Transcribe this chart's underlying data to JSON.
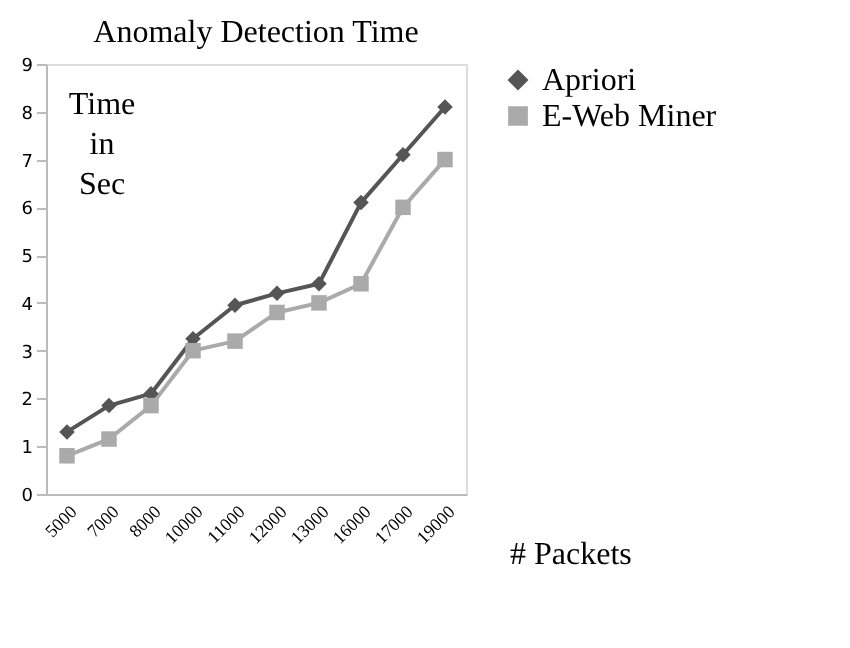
{
  "chart_data": {
    "type": "line",
    "title": "Anomaly Detection Time",
    "xlabel": "# Packets",
    "ylabel": "Time in Sec",
    "categories": [
      "5000",
      "7000",
      "8000",
      "10000",
      "11000",
      "12000",
      "13000",
      "16000",
      "17000",
      "19000"
    ],
    "series": [
      {
        "name": "Apriori",
        "color": "#555555",
        "marker": "diamond",
        "values": [
          1.3,
          1.85,
          2.1,
          3.25,
          3.95,
          4.2,
          4.4,
          6.1,
          7.1,
          8.1
        ]
      },
      {
        "name": "E-Web Miner",
        "color": "#aaaaaa",
        "marker": "square",
        "values": [
          0.8,
          1.15,
          1.85,
          3.0,
          3.2,
          3.8,
          4.0,
          4.4,
          6.0,
          7.0
        ]
      }
    ],
    "ylim": [
      0,
      9
    ],
    "yticks": [
      0,
      1,
      2,
      3,
      4,
      5,
      6,
      7,
      8,
      9
    ],
    "grid": false,
    "legend": "right",
    "line_style": "solid"
  }
}
